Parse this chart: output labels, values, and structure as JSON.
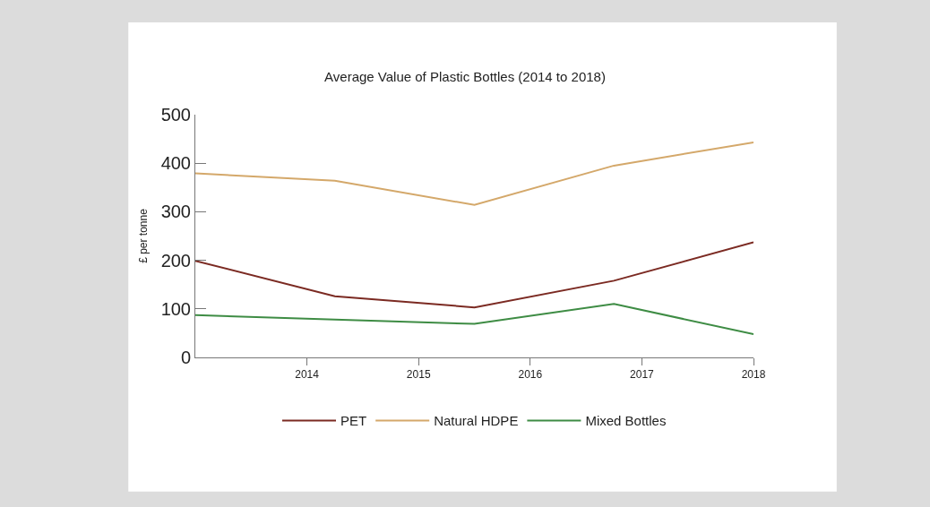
{
  "chart_data": {
    "type": "line",
    "title": "Average Value of Plastic Bottles (2014 to 2018)",
    "ylabel": "£ per tonne",
    "x": [
      2013,
      2014.25,
      2015.5,
      2016.75,
      2018
    ],
    "series": [
      {
        "name": "PET",
        "color": "#7b2a22",
        "values": [
          199,
          126,
          103,
          158,
          237
        ]
      },
      {
        "name": "Natural HDPE",
        "color": "#d4a86a",
        "values": [
          379,
          364,
          314,
          395,
          443
        ]
      },
      {
        "name": "Mixed Bottles",
        "color": "#3e8c44",
        "values": [
          87,
          78,
          69,
          110,
          48
        ]
      }
    ],
    "xlim": [
      2013,
      2018
    ],
    "xticks": [
      2014,
      2015,
      2016,
      2017,
      2018
    ],
    "ylim": [
      0,
      500
    ],
    "yticks": [
      0,
      100,
      200,
      300,
      400,
      500
    ],
    "legend": "bottom",
    "line_style": "solid"
  }
}
